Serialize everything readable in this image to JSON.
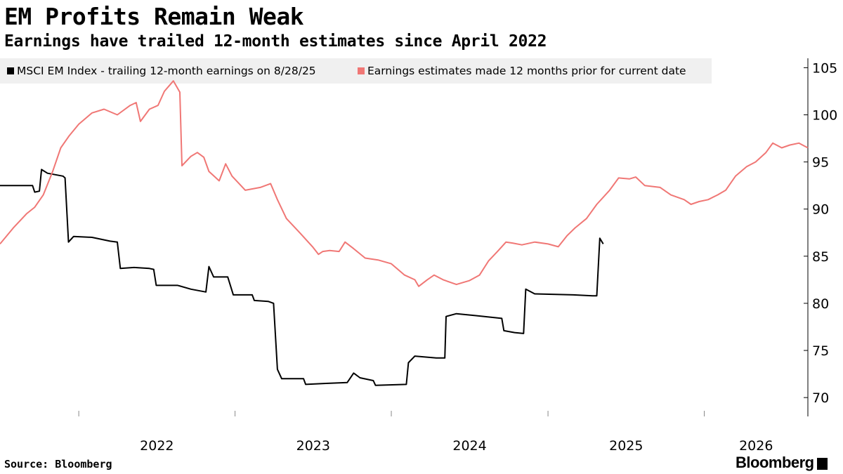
{
  "header": {
    "title": "EM Profits Remain Weak",
    "subtitle": "Earnings have trailed 12-month estimates since April 2022"
  },
  "footer": {
    "source": "Source: Bloomberg",
    "logo": "Bloomberg"
  },
  "chart_data": {
    "type": "line",
    "title": "EM Profits Remain Weak",
    "subtitle": "Earnings have trailed 12-month estimates since April 2022",
    "ylim": [
      68,
      106
    ],
    "xlim": [
      "2021-07-01",
      "2026-08-31"
    ],
    "yticks": [
      70,
      75,
      80,
      85,
      90,
      95,
      100,
      105
    ],
    "xtick_labels": [
      "2022",
      "2023",
      "2024",
      "2025",
      "2026"
    ],
    "grid": false,
    "legend_position": "top",
    "y_axis_position": "right",
    "series": [
      {
        "name": "MSCI EM Index - trailing 12-month earnings on 8/28/25",
        "color": "#000000",
        "points": [
          [
            "2021-07-01",
            92.5
          ],
          [
            "2021-09-15",
            92.5
          ],
          [
            "2021-09-20",
            91.8
          ],
          [
            "2021-10-01",
            91.9
          ],
          [
            "2021-10-06",
            94.2
          ],
          [
            "2021-10-20",
            93.8
          ],
          [
            "2021-11-25",
            93.5
          ],
          [
            "2021-11-30",
            93.3
          ],
          [
            "2021-12-08",
            86.5
          ],
          [
            "2021-12-20",
            87.1
          ],
          [
            "2022-02-01",
            87.0
          ],
          [
            "2022-03-15",
            86.6
          ],
          [
            "2022-04-01",
            86.5
          ],
          [
            "2022-04-08",
            83.7
          ],
          [
            "2022-05-10",
            83.8
          ],
          [
            "2022-06-15",
            83.7
          ],
          [
            "2022-06-25",
            83.6
          ],
          [
            "2022-07-01",
            81.9
          ],
          [
            "2022-08-20",
            81.9
          ],
          [
            "2022-09-20",
            81.5
          ],
          [
            "2022-10-25",
            81.2
          ],
          [
            "2022-11-01",
            83.9
          ],
          [
            "2022-11-12",
            82.8
          ],
          [
            "2022-12-15",
            82.8
          ],
          [
            "2022-12-28",
            80.9
          ],
          [
            "2023-02-10",
            80.9
          ],
          [
            "2023-02-15",
            80.3
          ],
          [
            "2023-03-20",
            80.2
          ],
          [
            "2023-04-01",
            80.0
          ],
          [
            "2023-04-10",
            73.0
          ],
          [
            "2023-04-20",
            72.0
          ],
          [
            "2023-06-10",
            72.0
          ],
          [
            "2023-06-15",
            71.4
          ],
          [
            "2023-08-01",
            71.5
          ],
          [
            "2023-09-20",
            71.6
          ],
          [
            "2023-10-05",
            72.6
          ],
          [
            "2023-10-20",
            72.1
          ],
          [
            "2023-11-20",
            71.8
          ],
          [
            "2023-11-25",
            71.3
          ],
          [
            "2024-02-05",
            71.4
          ],
          [
            "2024-02-10",
            73.7
          ],
          [
            "2024-02-25",
            74.4
          ],
          [
            "2024-04-15",
            74.2
          ],
          [
            "2024-05-05",
            74.2
          ],
          [
            "2024-05-08",
            78.6
          ],
          [
            "2024-06-01",
            78.9
          ],
          [
            "2024-07-15",
            78.7
          ],
          [
            "2024-09-15",
            78.4
          ],
          [
            "2024-09-20",
            77.1
          ],
          [
            "2024-10-15",
            76.9
          ],
          [
            "2024-11-05",
            76.8
          ],
          [
            "2024-11-10",
            81.5
          ],
          [
            "2024-12-01",
            81.0
          ],
          [
            "2025-03-01",
            80.9
          ],
          [
            "2025-04-15",
            80.8
          ],
          [
            "2025-04-25",
            80.8
          ],
          [
            "2025-05-02",
            86.9
          ],
          [
            "2025-05-10",
            86.3
          ]
        ]
      },
      {
        "name": "Earnings estimates made 12 months prior for current date",
        "color": "#f07775",
        "points": [
          [
            "2021-07-01",
            86.3
          ],
          [
            "2021-08-01",
            88.0
          ],
          [
            "2021-09-01",
            89.5
          ],
          [
            "2021-09-20",
            90.2
          ],
          [
            "2021-10-10",
            91.5
          ],
          [
            "2021-11-01",
            94.0
          ],
          [
            "2021-11-20",
            96.5
          ],
          [
            "2021-12-10",
            97.8
          ],
          [
            "2022-01-01",
            99.0
          ],
          [
            "2022-02-01",
            100.2
          ],
          [
            "2022-03-01",
            100.6
          ],
          [
            "2022-04-01",
            100.0
          ],
          [
            "2022-05-01",
            101.0
          ],
          [
            "2022-05-15",
            101.3
          ],
          [
            "2022-05-25",
            99.3
          ],
          [
            "2022-06-15",
            100.6
          ],
          [
            "2022-07-05",
            101.0
          ],
          [
            "2022-07-20",
            102.5
          ],
          [
            "2022-08-10",
            103.6
          ],
          [
            "2022-08-25",
            102.4
          ],
          [
            "2022-08-30",
            94.6
          ],
          [
            "2022-09-20",
            95.6
          ],
          [
            "2022-10-05",
            96.0
          ],
          [
            "2022-10-20",
            95.5
          ],
          [
            "2022-11-01",
            94.0
          ],
          [
            "2022-11-25",
            93.0
          ],
          [
            "2022-12-10",
            94.8
          ],
          [
            "2022-12-25",
            93.5
          ],
          [
            "2023-01-25",
            92.0
          ],
          [
            "2023-03-01",
            92.3
          ],
          [
            "2023-03-25",
            92.7
          ],
          [
            "2023-04-10",
            91.0
          ],
          [
            "2023-05-01",
            89.0
          ],
          [
            "2023-06-01",
            87.5
          ],
          [
            "2023-07-01",
            86.0
          ],
          [
            "2023-07-15",
            85.2
          ],
          [
            "2023-07-25",
            85.5
          ],
          [
            "2023-08-10",
            85.6
          ],
          [
            "2023-09-01",
            85.5
          ],
          [
            "2023-09-15",
            86.5
          ],
          [
            "2023-10-05",
            85.8
          ],
          [
            "2023-11-01",
            84.8
          ],
          [
            "2023-12-01",
            84.6
          ],
          [
            "2024-01-01",
            84.2
          ],
          [
            "2024-02-01",
            83.0
          ],
          [
            "2024-02-25",
            82.5
          ],
          [
            "2024-03-05",
            81.8
          ],
          [
            "2024-03-25",
            82.5
          ],
          [
            "2024-04-10",
            83.0
          ],
          [
            "2024-05-01",
            82.5
          ],
          [
            "2024-06-01",
            82.0
          ],
          [
            "2024-07-01",
            82.4
          ],
          [
            "2024-07-25",
            83.0
          ],
          [
            "2024-08-15",
            84.5
          ],
          [
            "2024-09-05",
            85.5
          ],
          [
            "2024-09-25",
            86.5
          ],
          [
            "2024-10-10",
            86.4
          ],
          [
            "2024-11-01",
            86.2
          ],
          [
            "2024-12-01",
            86.5
          ],
          [
            "2025-01-01",
            86.3
          ],
          [
            "2025-01-25",
            86.0
          ],
          [
            "2025-02-15",
            87.2
          ],
          [
            "2025-03-05",
            88.0
          ],
          [
            "2025-04-01",
            89.0
          ],
          [
            "2025-04-25",
            90.5
          ],
          [
            "2025-05-25",
            92.0
          ],
          [
            "2025-06-15",
            93.3
          ],
          [
            "2025-07-10",
            93.2
          ],
          [
            "2025-07-25",
            93.4
          ],
          [
            "2025-08-15",
            92.5
          ],
          [
            "2025-09-20",
            92.3
          ],
          [
            "2025-10-15",
            91.5
          ],
          [
            "2025-11-15",
            91.0
          ],
          [
            "2025-12-01",
            90.5
          ],
          [
            "2025-12-20",
            90.8
          ],
          [
            "2026-01-10",
            91.0
          ],
          [
            "2026-02-01",
            91.5
          ],
          [
            "2026-02-20",
            92.0
          ],
          [
            "2026-03-15",
            93.5
          ],
          [
            "2026-04-10",
            94.5
          ],
          [
            "2026-05-01",
            95.0
          ],
          [
            "2026-05-25",
            96.0
          ],
          [
            "2026-06-10",
            97.0
          ],
          [
            "2026-07-01",
            96.5
          ],
          [
            "2026-07-20",
            96.8
          ],
          [
            "2026-08-10",
            97.0
          ],
          [
            "2026-08-31",
            96.5
          ]
        ]
      }
    ]
  }
}
